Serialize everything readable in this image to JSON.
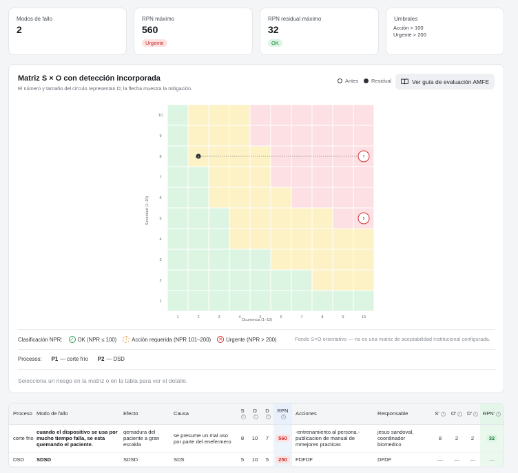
{
  "kpis": [
    {
      "label": "Modos de fallo",
      "value": "2"
    },
    {
      "label": "RPN máximo",
      "value": "560",
      "badge": "Urgente"
    },
    {
      "label": "RPN residual máximo",
      "value": "32",
      "badge": "OK"
    },
    {
      "label": "Umbrales",
      "lines": [
        "Acción > 100",
        "Urgente > 200"
      ]
    }
  ],
  "matrix": {
    "title": "Matriz S × O con detección incorporada",
    "subtitle": "El número y tamaño del círculo representan D; la flecha muestra la mitigación.",
    "legend_before": "Antes",
    "legend_residual": "Residual",
    "guide_button": "Ver guía de evaluación AMFE",
    "y_axis_label": "Severidad (1–10)",
    "x_axis_label": "Ocurrencia (1–10)",
    "ticks": [
      "1",
      "2",
      "3",
      "4",
      "5",
      "6",
      "7",
      "8",
      "9",
      "10"
    ],
    "points": [
      {
        "s": 8,
        "o": 10,
        "d": "7",
        "kind": "before"
      },
      {
        "s": 5,
        "o": 10,
        "d": "5",
        "kind": "before"
      },
      {
        "s": 8,
        "o": 2,
        "d": "2",
        "kind": "residual"
      }
    ],
    "colors": {
      "green": "#dcf5e3",
      "yellow": "#fdf1c6",
      "red": "#fde0e4",
      "urgent": "#d32f2f",
      "ok": "#2e9e55",
      "warn": "#e6a23c"
    }
  },
  "classification": {
    "label": "Clasificación NPR:",
    "items": [
      "OK (NPR ≤ 100)",
      "Acción requerida (NPR 101–200)",
      "Urgente (NPR > 200)"
    ],
    "note": "Fondo S×O orientativo — no es una matriz de aceptabilidad institucional configurada."
  },
  "processes": {
    "label": "Procesos:",
    "items": [
      {
        "code": "P1",
        "name": "— corte frío"
      },
      {
        "code": "P2",
        "name": "— DSD"
      }
    ]
  },
  "hint": "Selecciona un riesgo en la matriz o en la tabla para ver el detalle.",
  "table": {
    "headers": [
      "Proceso",
      "Modo de fallo",
      "Efecto",
      "Causa",
      "S",
      "O",
      "D",
      "RPN",
      "Acciones",
      "Responsable",
      "S'",
      "O'",
      "D'",
      "RPN'"
    ],
    "rows": [
      {
        "proceso": "corte frio",
        "modo": "cuando el dispositivo se usa por mucho tiempo falla, se esta quemando el paciente.",
        "efecto": "qemadura del paciente a gran escakla",
        "causa": "se presume un mal uso por parte del enefermero",
        "s": "8",
        "o": "10",
        "d": "7",
        "rpn": "560",
        "acciones": "-entrenamiento al persona.-publicacion de manual de mmejores practicas",
        "responsable": "jesus sandoval, coordinador biomedico",
        "s2": "8",
        "o2": "2",
        "d2": "2",
        "rpn2": "32"
      },
      {
        "proceso": "DSD",
        "modo": "SDSD",
        "efecto": "SDSD",
        "causa": "SDS",
        "s": "5",
        "o": "10",
        "d": "5",
        "rpn": "250",
        "acciones": "FDFDF",
        "responsable": "DFDF",
        "s2": "—",
        "o2": "—",
        "d2": "—",
        "rpn2": "—"
      }
    ]
  }
}
